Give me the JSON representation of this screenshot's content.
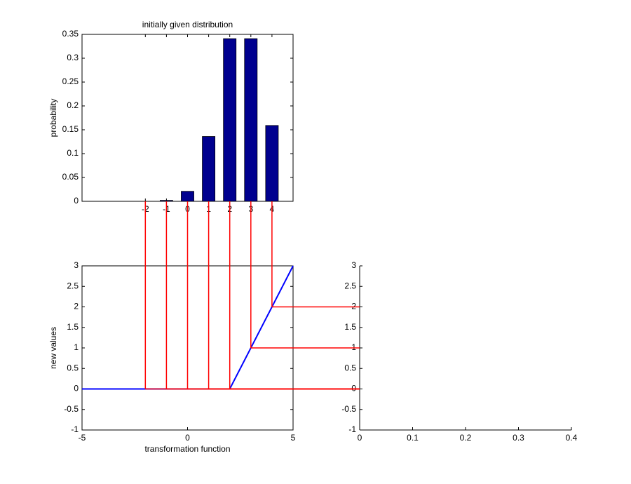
{
  "chart_data": [
    {
      "type": "bar",
      "title": "initially given distribution",
      "y_label": "probability",
      "x": [
        -2,
        -1,
        0,
        1,
        2,
        3,
        4
      ],
      "values": [
        0,
        0.002,
        0.021,
        0.136,
        0.341,
        0.341,
        0.159
      ],
      "color": "#00008f",
      "xlim": [
        -5,
        5
      ],
      "xticks": [
        -2,
        -1,
        0,
        1,
        2,
        3,
        4
      ],
      "ylim": [
        0,
        0.35
      ],
      "yticks": [
        0,
        0.05,
        0.1,
        0.15,
        0.2,
        0.25,
        0.3,
        0.35
      ],
      "box": true
    },
    {
      "type": "line",
      "x_label": "transformation function",
      "y_label": "new values",
      "series": [
        {
          "color": "#0000ff",
          "x": [
            -5,
            2,
            5
          ],
          "values": [
            0,
            0,
            3
          ]
        }
      ],
      "mapping": {
        "color": "#ff0000",
        "x": [
          -2,
          -1,
          0,
          1,
          2,
          3,
          4
        ],
        "y": [
          0,
          0,
          0,
          0,
          0,
          1,
          2
        ]
      },
      "xlim": [
        -5,
        5
      ],
      "xticks": [
        -5,
        0,
        5
      ],
      "ylim": [
        -1,
        3
      ],
      "yticks": [
        -1,
        -0.5,
        0,
        0.5,
        1,
        1.5,
        2,
        2.5,
        3
      ],
      "box": true
    },
    {
      "type": "line",
      "xlim": [
        0,
        0.4
      ],
      "xticks": [
        0,
        0.1,
        0.2,
        0.3,
        0.4
      ],
      "ylim": [
        -1,
        3
      ],
      "yticks": [
        -1,
        -0.5,
        0,
        0.5,
        1,
        1.5,
        2,
        2.5,
        3
      ],
      "box": false
    }
  ]
}
